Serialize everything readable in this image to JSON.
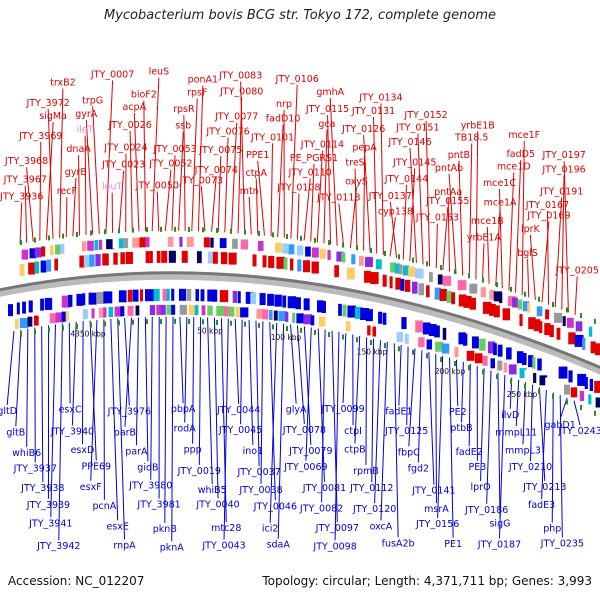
{
  "title": "Mycobacterium bovis BCG str. Tokyo 172, complete genome",
  "footer": {
    "accession": "Accession: NC_012207",
    "stats": "Topology: circular; Length: 4,371,711 bp; Genes: 3,993"
  },
  "colors": {
    "forward": "#e00000",
    "reverse": "#0000dd",
    "rna": "#ee88ee",
    "backbone": "#777777",
    "tick": "#2a8a2a"
  },
  "ticks": [
    "4350 kbp",
    "50 kbp",
    "100 kbp",
    "150 kbp",
    "200 kbp",
    "250 kbp"
  ],
  "forward_labels": [
    "JTY_3936",
    "JTY_3967",
    "JTY_3968",
    "JTY_3969",
    "sigMa",
    "JTY_3972",
    "trxB2",
    "recF",
    "gyrB",
    "dnaA",
    "ileT",
    "gyrA",
    "trpG",
    "JTY_0007",
    "leuT",
    "JTY_0023",
    "JTY_0024",
    "JTY_0026",
    "acpA",
    "bioF2",
    "leuS",
    "JTY_0050",
    "JTY_0052",
    "JTY_0053",
    "ssb",
    "rpsR",
    "rpsF",
    "ponA1",
    "JTY_0073",
    "JTY_0074",
    "JTY_0075",
    "JTY_0076",
    "JTY_0077",
    "JTY_0080",
    "JTY_0083",
    "mtn",
    "ctpA",
    "PPE1",
    "JTY_0101",
    "fadD10",
    "nrp",
    "JTY_0106",
    "JTY_0108",
    "JTY_0110",
    "PE_PGRS1",
    "JTY_0114",
    "gca",
    "JTY_0115",
    "gmhA",
    "JTY_0118",
    "oxyS",
    "treS",
    "pepA",
    "JTY_0126",
    "JTY_0131",
    "JTY_0134",
    "cyp138",
    "JTY_0137",
    "JTY_0144",
    "JTY_0145",
    "JTY_0146",
    "JTY_0151",
    "JTY_0152",
    "JTY_0153",
    "JTY_0155",
    "pntAa",
    "pntAb",
    "pntB",
    "TB18.5",
    "yrbE1B",
    "yrbE1A",
    "mce1B",
    "mce1A",
    "mce1C",
    "mce1D",
    "fadD5",
    "mce1F",
    "bglS",
    "lprK",
    "JTY_0169",
    "JTY_0167",
    "JTY_0191",
    "JTY_0196",
    "JTY_0197",
    "JTY_0205"
  ],
  "reverse_labels": [
    "gltD",
    "gltB",
    "whiB6",
    "JTY_3937",
    "JTY_3938",
    "JTY_3939",
    "JTY_3941",
    "JTY_3942",
    "esxC",
    "JTY_3940",
    "esxD",
    "PPE69",
    "esxF",
    "pcnA",
    "esxE",
    "rnpA",
    "JTY_3976",
    "parB",
    "parA",
    "gidB",
    "JTY_3980",
    "JTY_3981",
    "pknB",
    "pknA",
    "pbpA",
    "rodA",
    "ppp",
    "JTY_0019",
    "whiB5",
    "JTY_0040",
    "mtc28",
    "JTY_0043",
    "JTY_0044",
    "JTY_0045",
    "ino1",
    "JTY_0037",
    "JTY_0038",
    "JTY_0046",
    "ici2",
    "sdaA",
    "glyA",
    "JTY_0078",
    "JTY_0079",
    "JTY_0069",
    "JTY_0081",
    "JTY_0082",
    "JTY_0097",
    "JTY_0098",
    "JTY_0099",
    "ctpI",
    "ctpB",
    "rpmB",
    "JTY_0112",
    "JTY_0120",
    "oxcA",
    "fusA2b",
    "fadE1",
    "JTY_0125",
    "fbpC",
    "fgd2",
    "JTY_0141",
    "msrA",
    "JTY_0156",
    "PE1",
    "PE2",
    "ptbB",
    "fadE2",
    "PE3",
    "lprO",
    "JTY_0186",
    "sigG",
    "JTY_0187",
    "ilvD",
    "mmpL11",
    "mmpL3",
    "JTY_0210",
    "JTY_0213",
    "fadE3",
    "php",
    "JTY_0235",
    "gabD1",
    "JTY_0243"
  ]
}
